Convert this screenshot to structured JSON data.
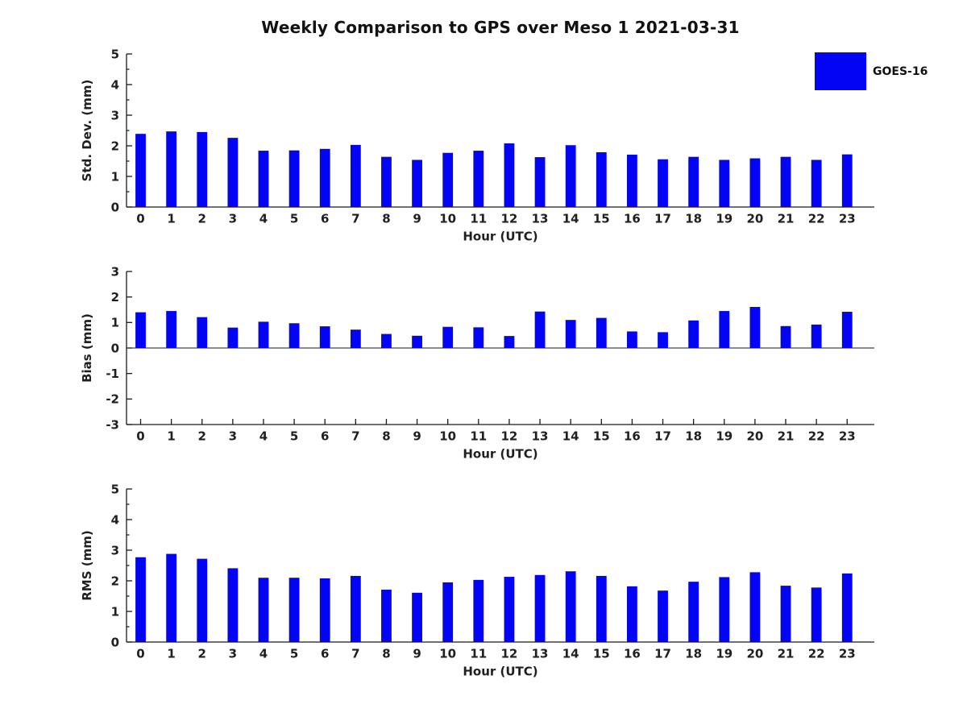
{
  "title": "Weekly Comparison to GPS over Meso 1 2021-03-31",
  "legend": {
    "label": "GOES-16",
    "swatch_color": "#0404F4"
  },
  "colors": {
    "bar": "#0404F4",
    "axis": "#1a1a1a",
    "text": "#1f1f1f",
    "background": "#ffffff"
  },
  "chart_data": [
    {
      "type": "bar",
      "id": "std_dev",
      "series_name": "GOES-16",
      "ylabel": "Std. Dev. (mm)",
      "xlabel": "Hour (UTC)",
      "ylim": [
        0,
        5
      ],
      "yticks": [
        0,
        1,
        2,
        3,
        4,
        5
      ],
      "minor_tick_step": 0.5,
      "grid": false,
      "categories": [
        0,
        1,
        2,
        3,
        4,
        5,
        6,
        7,
        8,
        9,
        10,
        11,
        12,
        13,
        14,
        15,
        16,
        17,
        18,
        19,
        20,
        21,
        22,
        23
      ],
      "values": [
        2.39,
        2.47,
        2.45,
        2.26,
        1.84,
        1.85,
        1.9,
        2.03,
        1.64,
        1.54,
        1.77,
        1.84,
        2.08,
        1.63,
        2.02,
        1.79,
        1.71,
        1.56,
        1.64,
        1.54,
        1.59,
        1.64,
        1.54,
        1.72
      ]
    },
    {
      "type": "bar",
      "id": "bias",
      "series_name": "GOES-16",
      "ylabel": "Bias (mm)",
      "xlabel": "Hour (UTC)",
      "ylim": [
        -3,
        3
      ],
      "yticks": [
        -3,
        -2,
        -1,
        0,
        1,
        2,
        3
      ],
      "minor_tick_step": null,
      "grid": false,
      "categories": [
        0,
        1,
        2,
        3,
        4,
        5,
        6,
        7,
        8,
        9,
        10,
        11,
        12,
        13,
        14,
        15,
        16,
        17,
        18,
        19,
        20,
        21,
        22,
        23
      ],
      "values": [
        1.4,
        1.45,
        1.21,
        0.8,
        1.03,
        0.97,
        0.85,
        0.72,
        0.55,
        0.48,
        0.83,
        0.81,
        0.47,
        1.43,
        1.1,
        1.18,
        0.65,
        0.62,
        1.08,
        1.45,
        1.61,
        0.86,
        0.92,
        1.42
      ]
    },
    {
      "type": "bar",
      "id": "rms",
      "series_name": "GOES-16",
      "ylabel": "RMS (mm)",
      "xlabel": "Hour (UTC)",
      "ylim": [
        0,
        5
      ],
      "yticks": [
        0,
        1,
        2,
        3,
        4,
        5
      ],
      "minor_tick_step": 0.5,
      "grid": false,
      "categories": [
        0,
        1,
        2,
        3,
        4,
        5,
        6,
        7,
        8,
        9,
        10,
        11,
        12,
        13,
        14,
        15,
        16,
        17,
        18,
        19,
        20,
        21,
        22,
        23
      ],
      "values": [
        2.77,
        2.88,
        2.72,
        2.41,
        2.1,
        2.1,
        2.08,
        2.16,
        1.71,
        1.61,
        1.95,
        2.03,
        2.13,
        2.19,
        2.31,
        2.16,
        1.82,
        1.68,
        1.97,
        2.12,
        2.28,
        1.84,
        1.78,
        2.24
      ]
    }
  ]
}
